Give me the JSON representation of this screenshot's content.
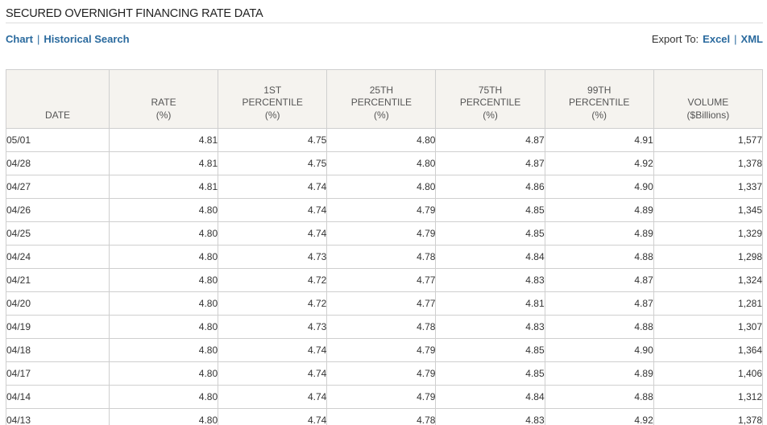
{
  "page": {
    "title": "SECURED OVERNIGHT FINANCING RATE DATA"
  },
  "links": {
    "chart": "Chart",
    "separator": "|",
    "historical_search": "Historical Search"
  },
  "export": {
    "label": "Export To:",
    "excel": "Excel",
    "separator": "|",
    "xml": "XML"
  },
  "table": {
    "headers": {
      "date": "DATE",
      "rate": [
        "RATE",
        "(%)"
      ],
      "p1": [
        "1ST",
        "PERCENTILE",
        "(%)"
      ],
      "p25": [
        "25TH",
        "PERCENTILE",
        "(%)"
      ],
      "p75": [
        "75TH",
        "PERCENTILE",
        "(%)"
      ],
      "p99": [
        "99TH",
        "PERCENTILE",
        "(%)"
      ],
      "volume": [
        "VOLUME",
        "($Billions)"
      ]
    },
    "rows": [
      {
        "date": "05/01",
        "rate": "4.81",
        "p1": "4.75",
        "p25": "4.80",
        "p75": "4.87",
        "p99": "4.91",
        "volume": "1,577"
      },
      {
        "date": "04/28",
        "rate": "4.81",
        "p1": "4.75",
        "p25": "4.80",
        "p75": "4.87",
        "p99": "4.92",
        "volume": "1,378"
      },
      {
        "date": "04/27",
        "rate": "4.81",
        "p1": "4.74",
        "p25": "4.80",
        "p75": "4.86",
        "p99": "4.90",
        "volume": "1,337"
      },
      {
        "date": "04/26",
        "rate": "4.80",
        "p1": "4.74",
        "p25": "4.79",
        "p75": "4.85",
        "p99": "4.89",
        "volume": "1,345"
      },
      {
        "date": "04/25",
        "rate": "4.80",
        "p1": "4.74",
        "p25": "4.79",
        "p75": "4.85",
        "p99": "4.89",
        "volume": "1,329"
      },
      {
        "date": "04/24",
        "rate": "4.80",
        "p1": "4.73",
        "p25": "4.78",
        "p75": "4.84",
        "p99": "4.88",
        "volume": "1,298"
      },
      {
        "date": "04/21",
        "rate": "4.80",
        "p1": "4.72",
        "p25": "4.77",
        "p75": "4.83",
        "p99": "4.87",
        "volume": "1,324"
      },
      {
        "date": "04/20",
        "rate": "4.80",
        "p1": "4.72",
        "p25": "4.77",
        "p75": "4.81",
        "p99": "4.87",
        "volume": "1,281"
      },
      {
        "date": "04/19",
        "rate": "4.80",
        "p1": "4.73",
        "p25": "4.78",
        "p75": "4.83",
        "p99": "4.88",
        "volume": "1,307"
      },
      {
        "date": "04/18",
        "rate": "4.80",
        "p1": "4.74",
        "p25": "4.79",
        "p75": "4.85",
        "p99": "4.90",
        "volume": "1,364"
      },
      {
        "date": "04/17",
        "rate": "4.80",
        "p1": "4.74",
        "p25": "4.79",
        "p75": "4.85",
        "p99": "4.89",
        "volume": "1,406"
      },
      {
        "date": "04/14",
        "rate": "4.80",
        "p1": "4.74",
        "p25": "4.79",
        "p75": "4.84",
        "p99": "4.88",
        "volume": "1,312"
      },
      {
        "date": "04/13",
        "rate": "4.80",
        "p1": "4.74",
        "p25": "4.78",
        "p75": "4.83",
        "p99": "4.92",
        "volume": "1,378"
      }
    ]
  },
  "colors": {
    "link": "#2a6a9e",
    "header_bg": "#f5f3ef",
    "border": "#cfcfcf"
  }
}
